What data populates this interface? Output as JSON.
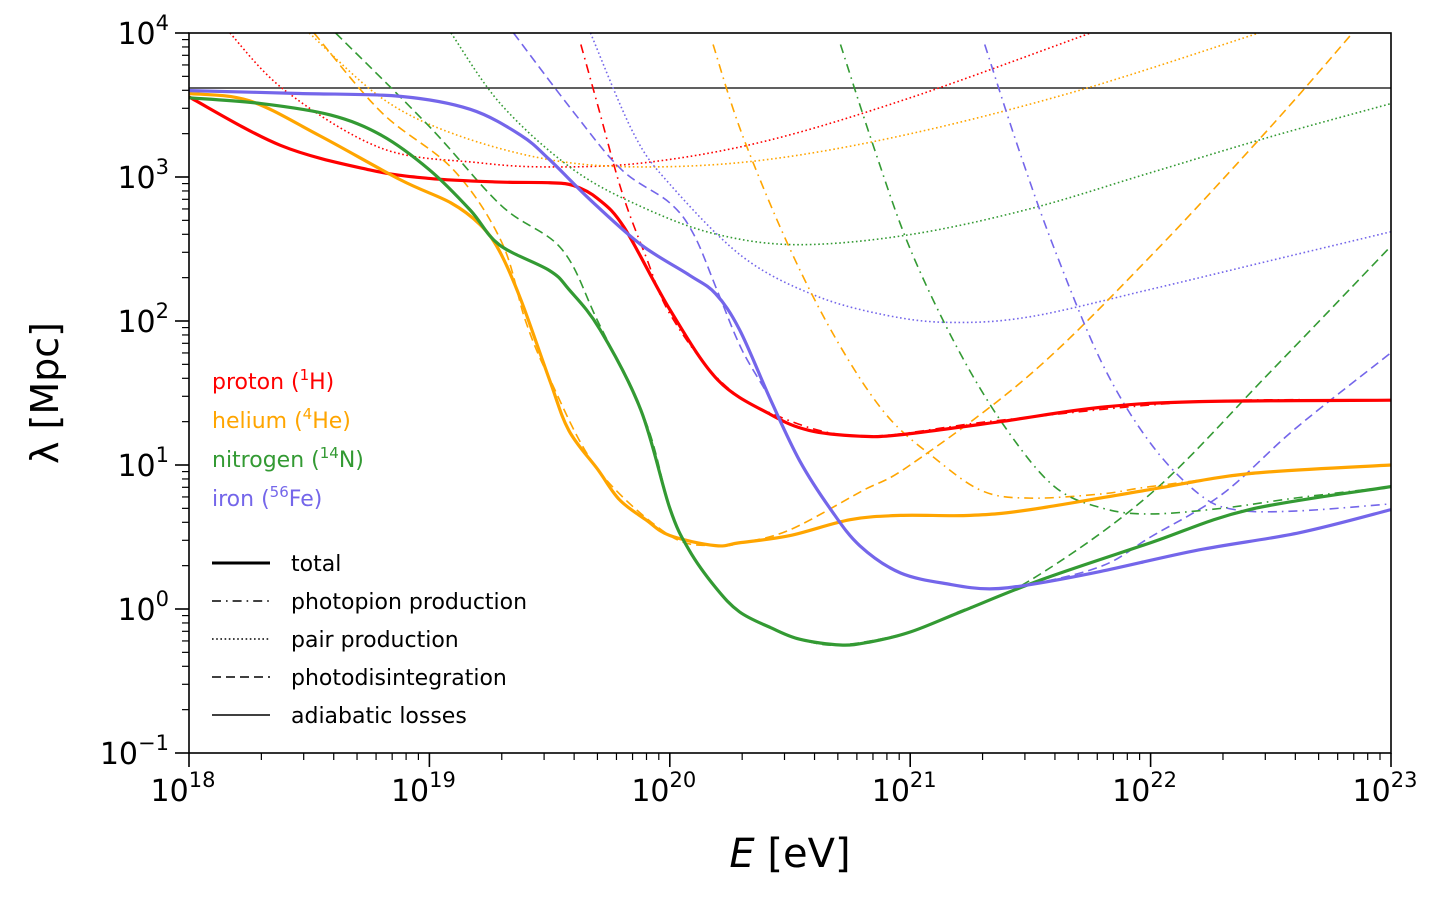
{
  "chart_data": {
    "type": "line",
    "xlabel": {
      "italic": "E",
      "rest": " [eV]"
    },
    "ylabel": "λ [Mpc]",
    "x_scale": "log",
    "y_scale": "log",
    "xlim": [
      1e+18,
      1e+23
    ],
    "ylim": [
      0.1,
      10000
    ],
    "x_ticks": [
      {
        "base": "10",
        "exp": "18"
      },
      {
        "base": "10",
        "exp": "19"
      },
      {
        "base": "10",
        "exp": "20"
      },
      {
        "base": "10",
        "exp": "21"
      },
      {
        "base": "10",
        "exp": "22"
      },
      {
        "base": "10",
        "exp": "23"
      }
    ],
    "y_ticks": [
      {
        "base": "10",
        "exp": "−1"
      },
      {
        "base": "10",
        "exp": "0"
      },
      {
        "base": "10",
        "exp": "1"
      },
      {
        "base": "10",
        "exp": "2"
      },
      {
        "base": "10",
        "exp": "3"
      },
      {
        "base": "10",
        "exp": "4"
      }
    ],
    "grid": false,
    "legend_placement": "left",
    "species_legend": [
      {
        "name": "proton",
        "label": "proton (",
        "sup": "1",
        "element": "H)",
        "color": "#ff0000"
      },
      {
        "name": "helium",
        "label": "helium (",
        "sup": "4",
        "element": "He)",
        "color": "#ffa500"
      },
      {
        "name": "nitrogen",
        "label": "nitrogen (",
        "sup": "14",
        "element": "N)",
        "color": "#339a33"
      },
      {
        "name": "iron",
        "label": "iron (",
        "sup": "56",
        "element": "Fe)",
        "color": "#7466ea"
      }
    ],
    "style_legend": [
      {
        "style": "total",
        "label": "total"
      },
      {
        "style": "photopion",
        "label": "photopion production"
      },
      {
        "style": "pair",
        "label": "pair production"
      },
      {
        "style": "photodis",
        "label": "photodisintegration"
      },
      {
        "style": "adiabatic",
        "label": "adiabatic losses"
      }
    ],
    "note": "series points given as [log10(E/eV), log10(lambda/Mpc)]",
    "adiabatic_lambda_Mpc": 4150,
    "series": [
      {
        "species": "proton",
        "style": "total",
        "points": [
          [
            18,
            3.556
          ],
          [
            18.38,
            3.22
          ],
          [
            18.75,
            3.05
          ],
          [
            19,
            2.99
          ],
          [
            19.29,
            2.965
          ],
          [
            19.5,
            2.96
          ],
          [
            19.6,
            2.94
          ],
          [
            19.7,
            2.85
          ],
          [
            19.81,
            2.65
          ],
          [
            20,
            2.08
          ],
          [
            20.2,
            1.59
          ],
          [
            20.42,
            1.35
          ],
          [
            20.58,
            1.24
          ],
          [
            20.79,
            1.2
          ],
          [
            20.96,
            1.21
          ],
          [
            21.37,
            1.3
          ],
          [
            21.79,
            1.4
          ],
          [
            22.2,
            1.44
          ],
          [
            23,
            1.45
          ]
        ]
      },
      {
        "species": "helium",
        "style": "total",
        "points": [
          [
            18,
            3.58
          ],
          [
            18.25,
            3.53
          ],
          [
            18.54,
            3.29
          ],
          [
            18.88,
            2.98
          ],
          [
            19.09,
            2.82
          ],
          [
            19.21,
            2.67
          ],
          [
            19.29,
            2.49
          ],
          [
            19.38,
            2.15
          ],
          [
            19.5,
            1.59
          ],
          [
            19.58,
            1.24
          ],
          [
            19.7,
            0.97
          ],
          [
            19.79,
            0.76
          ],
          [
            19.9,
            0.62
          ],
          [
            20,
            0.51
          ],
          [
            20.19,
            0.44
          ],
          [
            20.29,
            0.46
          ],
          [
            20.5,
            0.51
          ],
          [
            20.75,
            0.62
          ],
          [
            20.96,
            0.65
          ],
          [
            21.25,
            0.65
          ],
          [
            21.5,
            0.69
          ],
          [
            22,
            0.83
          ],
          [
            22.41,
            0.94
          ],
          [
            23,
            1.0
          ]
        ]
      },
      {
        "species": "nitrogen",
        "style": "total",
        "points": [
          [
            18,
            3.55
          ],
          [
            18.3,
            3.51
          ],
          [
            18.59,
            3.43
          ],
          [
            18.8,
            3.29
          ],
          [
            19,
            3.05
          ],
          [
            19.17,
            2.77
          ],
          [
            19.29,
            2.53
          ],
          [
            19.5,
            2.35
          ],
          [
            19.58,
            2.22
          ],
          [
            19.71,
            1.94
          ],
          [
            19.88,
            1.38
          ],
          [
            20,
            0.7
          ],
          [
            20.08,
            0.41
          ],
          [
            20.19,
            0.15
          ],
          [
            20.29,
            -0.02
          ],
          [
            20.42,
            -0.13
          ],
          [
            20.54,
            -0.21
          ],
          [
            20.71,
            -0.25
          ],
          [
            20.83,
            -0.23
          ],
          [
            21,
            -0.16
          ],
          [
            21.21,
            -0.02
          ],
          [
            21.54,
            0.2
          ],
          [
            22,
            0.46
          ],
          [
            22.41,
            0.69
          ],
          [
            23,
            0.85
          ]
        ]
      },
      {
        "species": "iron",
        "style": "total",
        "points": [
          [
            18,
            3.6
          ],
          [
            18.46,
            3.58
          ],
          [
            18.88,
            3.56
          ],
          [
            19.17,
            3.47
          ],
          [
            19.38,
            3.29
          ],
          [
            19.5,
            3.12
          ],
          [
            19.67,
            2.84
          ],
          [
            19.88,
            2.53
          ],
          [
            20.08,
            2.32
          ],
          [
            20.19,
            2.19
          ],
          [
            20.29,
            1.94
          ],
          [
            20.42,
            1.45
          ],
          [
            20.54,
            1.03
          ],
          [
            20.67,
            0.69
          ],
          [
            20.79,
            0.44
          ],
          [
            20.96,
            0.25
          ],
          [
            21.17,
            0.17
          ],
          [
            21.33,
            0.14
          ],
          [
            21.5,
            0.17
          ],
          [
            21.79,
            0.26
          ],
          [
            22.2,
            0.41
          ],
          [
            22.62,
            0.53
          ],
          [
            23,
            0.69
          ]
        ]
      },
      {
        "species": "proton",
        "style": "pair",
        "points": [
          [
            18.17,
            4
          ],
          [
            18.4,
            3.6
          ],
          [
            18.8,
            3.2
          ],
          [
            19.2,
            3.1
          ],
          [
            19.5,
            3.07
          ],
          [
            19.9,
            3.1
          ],
          [
            20.4,
            3.25
          ],
          [
            21,
            3.55
          ],
          [
            21.75,
            4
          ]
        ]
      },
      {
        "species": "helium",
        "style": "pair",
        "points": [
          [
            18.5,
            4
          ],
          [
            18.8,
            3.55
          ],
          [
            19.1,
            3.3
          ],
          [
            19.5,
            3.12
          ],
          [
            19.9,
            3.07
          ],
          [
            20.4,
            3.12
          ],
          [
            21,
            3.3
          ],
          [
            21.7,
            3.6
          ],
          [
            22.45,
            4
          ]
        ]
      },
      {
        "species": "nitrogen",
        "style": "pair",
        "points": [
          [
            19.09,
            4
          ],
          [
            19.3,
            3.5
          ],
          [
            19.6,
            3.05
          ],
          [
            19.9,
            2.78
          ],
          [
            20.2,
            2.6
          ],
          [
            20.54,
            2.53
          ],
          [
            21,
            2.6
          ],
          [
            21.5,
            2.78
          ],
          [
            22,
            3.03
          ],
          [
            22.5,
            3.28
          ],
          [
            23,
            3.51
          ]
        ]
      },
      {
        "species": "iron",
        "style": "pair",
        "points": [
          [
            19.67,
            4
          ],
          [
            19.85,
            3.3
          ],
          [
            20,
            2.95
          ],
          [
            20.3,
            2.45
          ],
          [
            20.6,
            2.18
          ],
          [
            20.9,
            2.04
          ],
          [
            21.17,
            1.99
          ],
          [
            21.5,
            2.03
          ],
          [
            22,
            2.22
          ],
          [
            22.5,
            2.42
          ],
          [
            23,
            2.62
          ]
        ]
      },
      {
        "species": "proton",
        "style": "photopion",
        "points": [
          [
            19.63,
            3.92
          ],
          [
            19.7,
            3.5
          ],
          [
            19.8,
            2.9
          ],
          [
            19.9,
            2.45
          ],
          [
            20,
            2.05
          ],
          [
            20.2,
            1.6
          ],
          [
            20.42,
            1.36
          ],
          [
            20.79,
            1.2
          ],
          [
            21.37,
            1.31
          ],
          [
            22.2,
            1.44
          ],
          [
            23,
            1.45
          ]
        ]
      },
      {
        "species": "helium",
        "style": "photopion",
        "points": [
          [
            20.18,
            3.92
          ],
          [
            20.3,
            3.3
          ],
          [
            20.5,
            2.5
          ],
          [
            20.7,
            1.85
          ],
          [
            20.9,
            1.35
          ],
          [
            21.1,
            1.05
          ],
          [
            21.3,
            0.82
          ],
          [
            21.5,
            0.77
          ],
          [
            21.8,
            0.8
          ],
          [
            22,
            0.85
          ],
          [
            22.5,
            0.95
          ],
          [
            23,
            1.0
          ]
        ]
      },
      {
        "species": "nitrogen",
        "style": "photopion",
        "points": [
          [
            20.71,
            3.92
          ],
          [
            20.85,
            3.2
          ],
          [
            21,
            2.5
          ],
          [
            21.2,
            1.8
          ],
          [
            21.4,
            1.25
          ],
          [
            21.6,
            0.85
          ],
          [
            21.8,
            0.7
          ],
          [
            22,
            0.66
          ],
          [
            22.3,
            0.7
          ],
          [
            22.6,
            0.77
          ],
          [
            23,
            0.85
          ]
        ]
      },
      {
        "species": "iron",
        "style": "photopion",
        "points": [
          [
            21.31,
            3.92
          ],
          [
            21.45,
            3.2
          ],
          [
            21.6,
            2.5
          ],
          [
            21.8,
            1.7
          ],
          [
            22,
            1.15
          ],
          [
            22.2,
            0.8
          ],
          [
            22.35,
            0.69
          ],
          [
            22.6,
            0.68
          ],
          [
            23,
            0.73
          ]
        ]
      },
      {
        "species": "helium",
        "style": "photodis",
        "points": [
          [
            18.52,
            4
          ],
          [
            18.8,
            3.45
          ],
          [
            19.1,
            3.05
          ],
          [
            19.3,
            2.55
          ],
          [
            19.4,
            2.0
          ],
          [
            19.5,
            1.6
          ],
          [
            19.7,
            0.97
          ],
          [
            20,
            0.51
          ],
          [
            20.19,
            0.44
          ],
          [
            20.3,
            0.46
          ],
          [
            20.5,
            0.55
          ],
          [
            20.8,
            0.82
          ],
          [
            21,
            1.0
          ],
          [
            21.5,
            1.63
          ],
          [
            22,
            2.45
          ],
          [
            22.5,
            3.35
          ],
          [
            22.84,
            4
          ]
        ]
      },
      {
        "species": "nitrogen",
        "style": "photodis",
        "points": [
          [
            18.61,
            4
          ],
          [
            19,
            3.35
          ],
          [
            19.3,
            2.8
          ],
          [
            19.55,
            2.5
          ],
          [
            19.7,
            2.0
          ],
          [
            19.9,
            1.3
          ],
          [
            20,
            0.7
          ],
          [
            20.08,
            0.41
          ],
          [
            20.19,
            0.15
          ],
          [
            20.29,
            -0.02
          ],
          [
            20.42,
            -0.13
          ],
          [
            20.54,
            -0.21
          ],
          [
            20.71,
            -0.25
          ],
          [
            21,
            -0.16
          ],
          [
            21.2,
            -0.02
          ],
          [
            21.5,
            0.2
          ],
          [
            22,
            0.8
          ],
          [
            22.5,
            1.65
          ],
          [
            23,
            2.52
          ]
        ]
      },
      {
        "species": "iron",
        "style": "photodis",
        "points": [
          [
            19.35,
            4
          ],
          [
            19.6,
            3.45
          ],
          [
            19.8,
            3.05
          ],
          [
            20,
            2.82
          ],
          [
            20.1,
            2.6
          ],
          [
            20.2,
            2.2
          ],
          [
            20.3,
            1.8
          ],
          [
            20.42,
            1.45
          ],
          [
            20.54,
            1.03
          ],
          [
            20.67,
            0.69
          ],
          [
            20.79,
            0.44
          ],
          [
            20.96,
            0.25
          ],
          [
            21.17,
            0.17
          ],
          [
            21.33,
            0.14
          ],
          [
            21.5,
            0.17
          ],
          [
            21.8,
            0.3
          ],
          [
            22,
            0.5
          ],
          [
            22.3,
            0.8
          ],
          [
            22.6,
            1.25
          ],
          [
            23,
            1.78
          ]
        ]
      }
    ]
  }
}
